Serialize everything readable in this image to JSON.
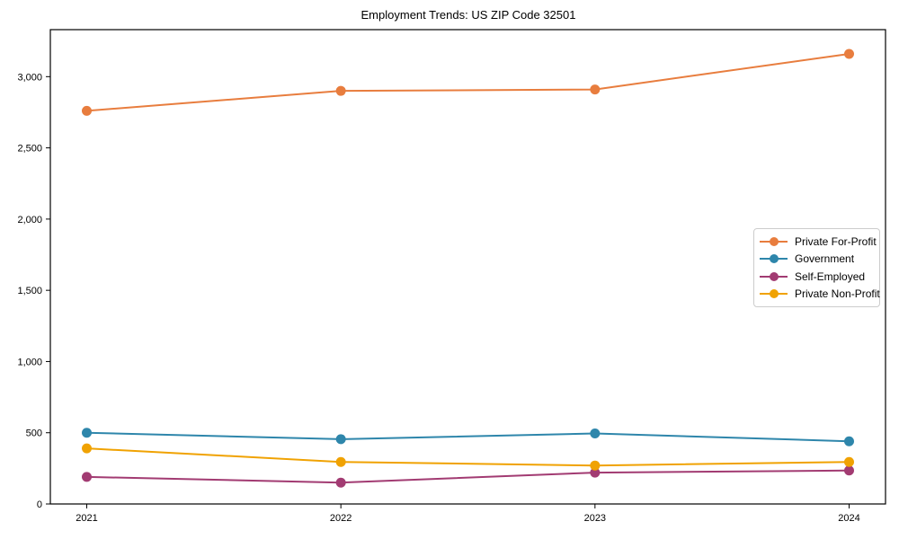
{
  "chart_data": {
    "type": "line",
    "title": "Employment Trends: US ZIP Code 32501",
    "xlabel": "",
    "ylabel": "",
    "categories": [
      "2021",
      "2022",
      "2023",
      "2024"
    ],
    "series": [
      {
        "name": "Private For-Profit",
        "color": "#E87D3E",
        "values": [
          2760,
          2900,
          2910,
          3160
        ]
      },
      {
        "name": "Government",
        "color": "#2E86AB",
        "values": [
          500,
          455,
          495,
          440
        ]
      },
      {
        "name": "Self-Employed",
        "color": "#A23B72",
        "values": [
          190,
          150,
          220,
          235
        ]
      },
      {
        "name": "Private Non-Profit",
        "color": "#F0A202",
        "values": [
          390,
          295,
          270,
          295
        ]
      }
    ],
    "ylim": [
      0,
      3330
    ],
    "yticks": [
      0,
      500,
      1000,
      1500,
      2000,
      2500,
      3000
    ],
    "grid": false,
    "legend_position": "center-right",
    "marker": "circle",
    "axis_color": "#000000"
  }
}
